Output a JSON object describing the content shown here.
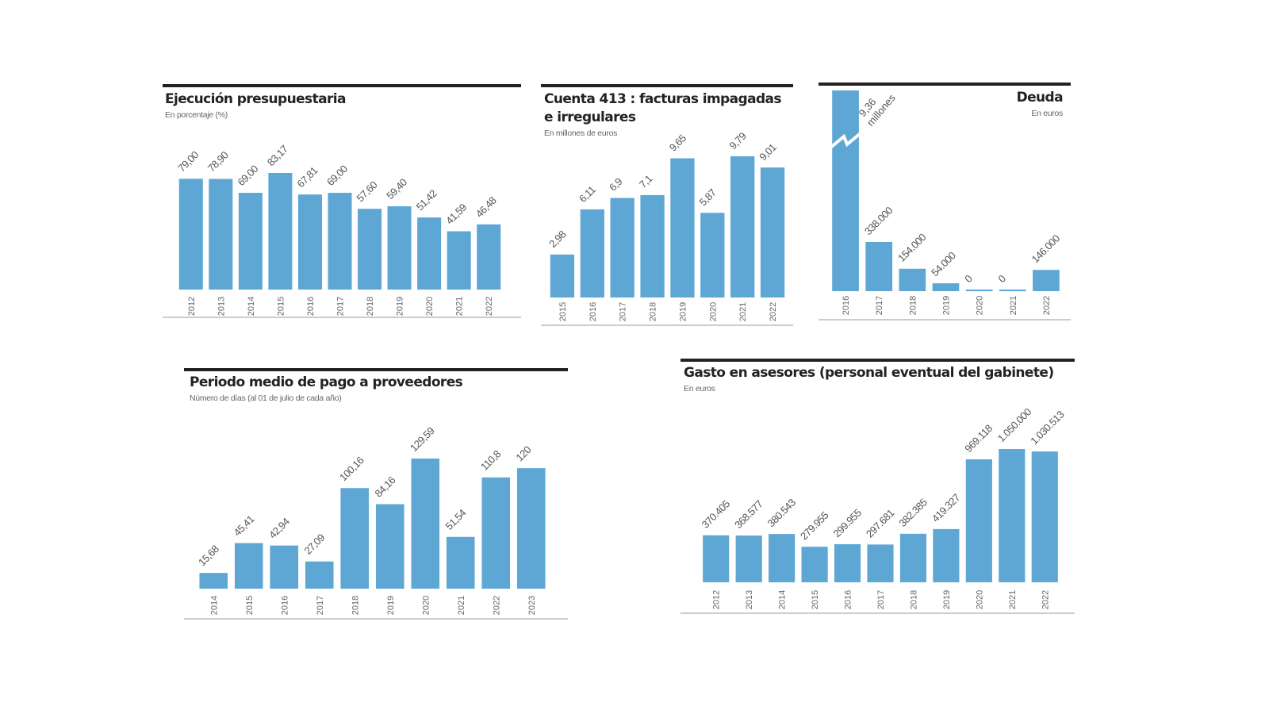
{
  "colors": {
    "bar": "#5ea7d5",
    "rule": "#222222",
    "axis": "#bbbbbb",
    "text": "#555555"
  },
  "chart_data": [
    {
      "type": "bar",
      "title": "Ejecución presupuestaria",
      "subtitle": "En porcentaje (%)",
      "categories": [
        "2012",
        "2013",
        "2014",
        "2015",
        "2016",
        "2017",
        "2018",
        "2019",
        "2020",
        "2021",
        "2022"
      ],
      "values": [
        79.0,
        78.9,
        69.0,
        83.17,
        67.81,
        69.0,
        57.6,
        59.4,
        51.42,
        41.59,
        46.48
      ],
      "labels": [
        "79,00",
        "78,90",
        "69,00",
        "83,17",
        "67,81",
        "69,00",
        "57,60",
        "59,40",
        "51,42",
        "41,59",
        "46,48"
      ]
    },
    {
      "type": "bar",
      "title": "Cuenta 413 : facturas impagadas e irregulares",
      "subtitle": "En millones de euros",
      "categories": [
        "2015",
        "2016",
        "2017",
        "2018",
        "2019",
        "2020",
        "2021",
        "2022"
      ],
      "values": [
        2.98,
        6.11,
        6.9,
        7.1,
        9.65,
        5.87,
        9.79,
        9.01
      ],
      "labels": [
        "2,98",
        "6,11",
        "6,9",
        "7,1",
        "9,65",
        "5,87",
        "9,79",
        "9,01"
      ]
    },
    {
      "type": "bar",
      "title": "Deuda",
      "subtitle": "En euros",
      "categories": [
        "2016",
        "2017",
        "2018",
        "2019",
        "2020",
        "2021",
        "2022"
      ],
      "values": [
        9360000,
        338000,
        154000,
        54000,
        0,
        0,
        146000
      ],
      "labels": [
        "9,36 millones",
        "338.000",
        "154.000",
        "54.000",
        "0",
        "0",
        "146.000"
      ],
      "axis_break": "2016"
    },
    {
      "type": "bar",
      "title": "Periodo medio de pago a proveedores",
      "subtitle": "Número de días (al 01 de julio de cada año)",
      "categories": [
        "2014",
        "2015",
        "2016",
        "2017",
        "2018",
        "2019",
        "2020",
        "2021",
        "2022",
        "2023"
      ],
      "values": [
        15.68,
        45.41,
        42.94,
        27.09,
        100.16,
        84.16,
        129.59,
        51.54,
        110.8,
        120
      ],
      "labels": [
        "15,68",
        "45,41",
        "42,94",
        "27,09",
        "100,16",
        "84,16",
        "129,59",
        "51,54",
        "110,8",
        "120"
      ]
    },
    {
      "type": "bar",
      "title": "Gasto en asesores (personal eventual del gabinete)",
      "subtitle": "En euros",
      "categories": [
        "2012",
        "2013",
        "2014",
        "2015",
        "2016",
        "2017",
        "2018",
        "2019",
        "2020",
        "2021",
        "2022"
      ],
      "values": [
        370405,
        368577,
        380543,
        279955,
        299955,
        297681,
        382385,
        419327,
        969118,
        1050000,
        1030513
      ],
      "labels": [
        "370.405",
        "368.577",
        "380.543",
        "279.955",
        "299.955",
        "297.681",
        "382.385",
        "419.327",
        "969.118",
        "1.050.000",
        "1.030.513"
      ]
    }
  ]
}
